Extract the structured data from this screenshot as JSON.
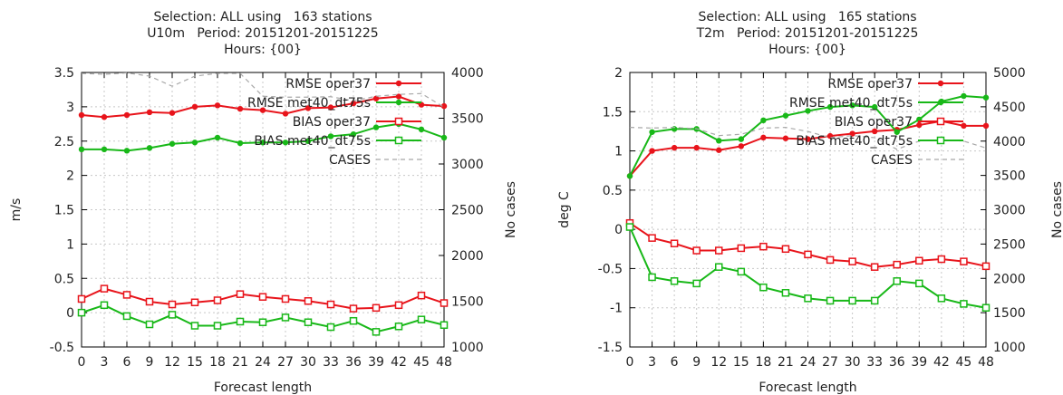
{
  "chart_data": [
    {
      "type": "line",
      "title": [
        "Selection: ALL using   163 stations",
        "U10m   Period: 20151201-20151225",
        "Hours: {00}"
      ],
      "xlabel": "Forecast length",
      "ylabel": "m/s",
      "y2label": "No cases",
      "x": [
        0,
        3,
        6,
        9,
        12,
        15,
        18,
        21,
        24,
        27,
        30,
        33,
        36,
        39,
        42,
        45,
        48
      ],
      "xticks": [
        "0",
        "3",
        "6",
        "9",
        "12",
        "15",
        "18",
        "21",
        "24",
        "27",
        "30",
        "33",
        "36",
        "39",
        "42",
        "45",
        "48"
      ],
      "ylim": [
        -0.5,
        3.5
      ],
      "yticks": [
        "-0.5",
        "0",
        "0.5",
        "1",
        "1.5",
        "2",
        "2.5",
        "3",
        "3.5"
      ],
      "y2lim": [
        1000,
        4000
      ],
      "y2ticks": [
        "1000",
        "1500",
        "2000",
        "2500",
        "3000",
        "3500",
        "4000"
      ],
      "grid": true,
      "legend": "top-right",
      "series": [
        {
          "name": "RMSE oper37",
          "color": "#e8141b",
          "marker": "filled-circle",
          "axis": "y",
          "values": [
            2.88,
            2.85,
            2.88,
            2.92,
            2.91,
            3.0,
            3.02,
            2.97,
            2.95,
            2.9,
            2.98,
            2.99,
            3.05,
            3.12,
            3.15,
            3.03,
            3.01
          ]
        },
        {
          "name": "RMSE met40_dt75s",
          "color": "#18b818",
          "marker": "filled-circle",
          "axis": "y",
          "values": [
            2.38,
            2.38,
            2.36,
            2.4,
            2.46,
            2.48,
            2.55,
            2.47,
            2.48,
            2.48,
            2.5,
            2.57,
            2.6,
            2.7,
            2.75,
            2.67,
            2.55
          ]
        },
        {
          "name": "BIAS oper37",
          "color": "#e8141b",
          "marker": "open-square",
          "axis": "y",
          "values": [
            0.2,
            0.35,
            0.26,
            0.16,
            0.12,
            0.15,
            0.18,
            0.27,
            0.23,
            0.2,
            0.17,
            0.12,
            0.06,
            0.07,
            0.11,
            0.25,
            0.14
          ]
        },
        {
          "name": "BIAS met40_dt75s",
          "color": "#18b818",
          "marker": "open-square",
          "axis": "y",
          "values": [
            0.0,
            0.11,
            -0.05,
            -0.17,
            -0.03,
            -0.19,
            -0.19,
            -0.13,
            -0.14,
            -0.07,
            -0.14,
            -0.21,
            -0.12,
            -0.28,
            -0.2,
            -0.1,
            -0.18
          ]
        },
        {
          "name": "CASES",
          "color": "#a8a8a8",
          "marker": "none",
          "dash": true,
          "axis": "y2",
          "values": [
            3990,
            3980,
            3995,
            3960,
            3850,
            3960,
            3990,
            3990,
            3740,
            3730,
            3730,
            3735,
            3690,
            3740,
            3760,
            3770,
            3620
          ]
        }
      ]
    },
    {
      "type": "line",
      "title": [
        "Selection: ALL using   165 stations",
        "T2m   Period: 20151201-20151225",
        "Hours: {00}"
      ],
      "xlabel": "Forecast length",
      "ylabel": "deg C",
      "y2label": "No cases",
      "x": [
        0,
        3,
        6,
        9,
        12,
        15,
        18,
        21,
        24,
        27,
        30,
        33,
        36,
        39,
        42,
        45,
        48
      ],
      "xticks": [
        "0",
        "3",
        "6",
        "9",
        "12",
        "15",
        "18",
        "21",
        "24",
        "27",
        "30",
        "33",
        "36",
        "39",
        "42",
        "45",
        "48"
      ],
      "ylim": [
        -1.5,
        2
      ],
      "yticks": [
        "-1.5",
        "-1",
        "-0.5",
        "0",
        "0.5",
        "1",
        "1.5",
        "2"
      ],
      "y2lim": [
        1000,
        5000
      ],
      "y2ticks": [
        "1000",
        "1500",
        "2000",
        "2500",
        "3000",
        "3500",
        "4000",
        "4500",
        "5000"
      ],
      "grid": true,
      "legend": "top-right",
      "series": [
        {
          "name": "RMSE oper37",
          "color": "#e8141b",
          "marker": "filled-circle",
          "axis": "y",
          "values": [
            0.68,
            1.0,
            1.04,
            1.04,
            1.01,
            1.06,
            1.17,
            1.16,
            1.15,
            1.19,
            1.22,
            1.25,
            1.27,
            1.33,
            1.38,
            1.32,
            1.32
          ]
        },
        {
          "name": "RMSE met40_dt75s",
          "color": "#18b818",
          "marker": "filled-circle",
          "axis": "y",
          "values": [
            0.68,
            1.24,
            1.28,
            1.28,
            1.13,
            1.15,
            1.39,
            1.45,
            1.51,
            1.56,
            1.58,
            1.56,
            1.24,
            1.4,
            1.63,
            1.7,
            1.68
          ]
        },
        {
          "name": "BIAS oper37",
          "color": "#e8141b",
          "marker": "open-square",
          "axis": "y",
          "values": [
            0.08,
            -0.11,
            -0.18,
            -0.27,
            -0.27,
            -0.24,
            -0.22,
            -0.25,
            -0.32,
            -0.39,
            -0.41,
            -0.48,
            -0.45,
            -0.4,
            -0.38,
            -0.41,
            -0.47
          ]
        },
        {
          "name": "BIAS met40_dt75s",
          "color": "#18b818",
          "marker": "open-square",
          "axis": "y",
          "values": [
            0.03,
            -0.61,
            -0.66,
            -0.69,
            -0.48,
            -0.54,
            -0.74,
            -0.81,
            -0.88,
            -0.91,
            -0.91,
            -0.91,
            -0.66,
            -0.69,
            -0.88,
            -0.95,
            -1.0
          ]
        },
        {
          "name": "CASES",
          "color": "#a8a8a8",
          "marker": "none",
          "dash": true,
          "axis": "y2",
          "values": [
            4200,
            4190,
            4200,
            4180,
            4080,
            4100,
            4190,
            4200,
            4140,
            4050,
            4080,
            4050,
            3880,
            4000,
            4020,
            4000,
            3900
          ]
        }
      ]
    }
  ]
}
